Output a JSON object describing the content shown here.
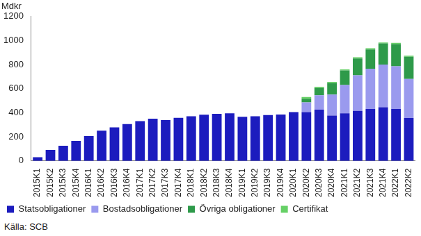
{
  "chart_data": {
    "type": "bar",
    "stacked": true,
    "y_label": "Mdkr",
    "source": "Källa: SCB",
    "categories": [
      "2015K1",
      "2015K2",
      "2015K3",
      "2015K4",
      "2016K1",
      "2016K2",
      "2016K3",
      "2016K4",
      "2017K1",
      "2017K2",
      "2017K3",
      "2017K4",
      "2018K1",
      "2018K2",
      "2018K3",
      "2018K4",
      "2019K1",
      "2019K2",
      "2019K3",
      "2019K4",
      "2020K1",
      "2020K2",
      "2020K3",
      "2020K4",
      "2021K1",
      "2021K2",
      "2021K3",
      "2021K4",
      "2022K1",
      "2022K2"
    ],
    "series": [
      {
        "name": "Statsobligationer",
        "color": "#1c1cbe",
        "values": [
          30,
          90,
          125,
          165,
          205,
          250,
          278,
          305,
          330,
          350,
          338,
          357,
          370,
          383,
          390,
          395,
          365,
          370,
          380,
          385,
          405,
          405,
          425,
          375,
          395,
          415,
          430,
          445,
          430,
          355
        ]
      },
      {
        "name": "Bostadsobligationer",
        "color": "#9a9aee",
        "values": [
          0,
          0,
          0,
          0,
          0,
          0,
          0,
          0,
          0,
          0,
          0,
          0,
          0,
          0,
          0,
          0,
          0,
          0,
          0,
          0,
          0,
          80,
          120,
          175,
          235,
          295,
          335,
          355,
          355,
          325
        ]
      },
      {
        "name": "Övriga obligationer",
        "color": "#2e9a4a",
        "values": [
          0,
          0,
          0,
          0,
          0,
          0,
          0,
          0,
          0,
          0,
          0,
          0,
          0,
          0,
          0,
          0,
          0,
          0,
          0,
          0,
          0,
          30,
          60,
          95,
          120,
          140,
          160,
          175,
          185,
          185
        ]
      },
      {
        "name": "Certifikat",
        "color": "#66d066",
        "values": [
          0,
          0,
          0,
          0,
          0,
          0,
          0,
          0,
          0,
          0,
          0,
          0,
          0,
          0,
          0,
          0,
          0,
          0,
          0,
          0,
          0,
          15,
          10,
          10,
          10,
          10,
          10,
          8,
          10,
          8
        ]
      }
    ],
    "ylim": [
      0,
      1200
    ],
    "yticks": [
      0,
      200,
      400,
      600,
      800,
      1000,
      1200
    ],
    "grid": false,
    "legend": "bottom"
  }
}
